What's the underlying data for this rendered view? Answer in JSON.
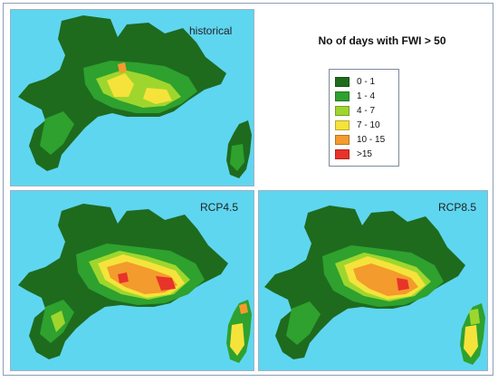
{
  "title": "No of days with FWI > 50",
  "legend": {
    "classes": [
      {
        "label": "0 - 1",
        "color": "#1e6b1e"
      },
      {
        "label": "1 - 4",
        "color": "#2ea12e"
      },
      {
        "label": "4 - 7",
        "color": "#9ed62e"
      },
      {
        "label": "7 - 10",
        "color": "#f5e33b"
      },
      {
        "label": "10 - 15",
        "color": "#f39b2c"
      },
      {
        "label": ">15",
        "color": "#e8332a"
      }
    ]
  },
  "colors": {
    "sea": "#5fd6f0",
    "land_low": "#1e6b1e",
    "land_light": "#2ea12e",
    "land_mid": "#9ed62e",
    "land_high": "#f5e33b",
    "land_veryhigh": "#f39b2c",
    "land_extreme": "#e8332a"
  },
  "panels": {
    "historical": {
      "label": "historical"
    },
    "rcp45": {
      "label": "RCP4.5"
    },
    "rcp85": {
      "label": "RCP8.5"
    }
  }
}
